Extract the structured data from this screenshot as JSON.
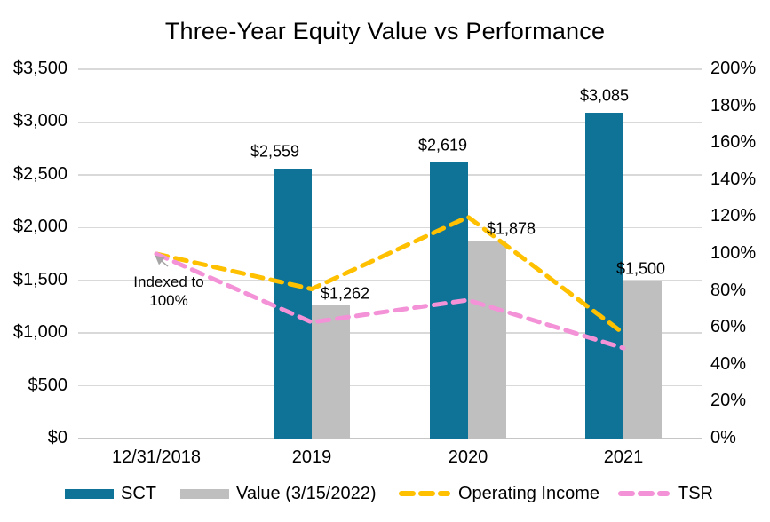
{
  "title": "Three-Year Equity Value vs Performance",
  "colors": {
    "sct": "#0E7396",
    "value": "#BFBFBF",
    "operating_income": "#FFC000",
    "tsr": "#F492D7",
    "gridline": "#D9D9D9",
    "axis_line": "#C6C6C6",
    "arrow": "#A6A6A6",
    "text": "#000000"
  },
  "axes": {
    "left_ticks": [
      "$3,500",
      "$3,000",
      "$2,500",
      "$2,000",
      "$1,500",
      "$1,000",
      "$500",
      "$0"
    ],
    "right_ticks": [
      "200%",
      "180%",
      "160%",
      "140%",
      "120%",
      "100%",
      "80%",
      "60%",
      "40%",
      "20%",
      "0%"
    ]
  },
  "annotation": {
    "line1": "Indexed to",
    "line2": "100%"
  },
  "legend": [
    {
      "label": "SCT",
      "swatch": "bar",
      "color_key": "sct"
    },
    {
      "label": "Value (3/15/2022)",
      "swatch": "bar",
      "color_key": "value"
    },
    {
      "label": "Operating Income",
      "swatch": "dashed-line",
      "color_key": "operating_income"
    },
    {
      "label": "TSR",
      "swatch": "dashed-line",
      "color_key": "tsr"
    }
  ],
  "chart_data": {
    "type": "combo",
    "title": "Three-Year Equity Value vs Performance",
    "categories": [
      "12/31/2018",
      "2019",
      "2020",
      "2021"
    ],
    "bar_series": [
      {
        "name": "SCT",
        "axis": "left",
        "color_key": "sct",
        "values": [
          null,
          2559,
          2619,
          3085
        ],
        "data_labels": [
          null,
          "$2,559",
          "$2,619",
          "$3,085"
        ]
      },
      {
        "name": "Value (3/15/2022)",
        "axis": "left",
        "color_key": "value",
        "values": [
          null,
          1262,
          1878,
          1500
        ],
        "data_labels": [
          null,
          "$1,262",
          "$1,878",
          "$1,500"
        ]
      }
    ],
    "line_series": [
      {
        "name": "Operating Income",
        "axis": "right",
        "color_key": "operating_income",
        "style": "dashed",
        "values_pct": [
          100,
          81,
          120,
          57
        ]
      },
      {
        "name": "TSR",
        "axis": "right",
        "color_key": "tsr",
        "style": "dashed",
        "values_pct": [
          100,
          63,
          75,
          49
        ]
      }
    ],
    "y_left": {
      "min": 0,
      "max": 3500,
      "tick_step": 500,
      "format": "$#,##0"
    },
    "y_right": {
      "min": 0,
      "max": 200,
      "tick_step": 20,
      "format": "0%"
    },
    "grid": "horizontal",
    "legend_position": "bottom",
    "annotation_text": "Indexed to 100%"
  }
}
